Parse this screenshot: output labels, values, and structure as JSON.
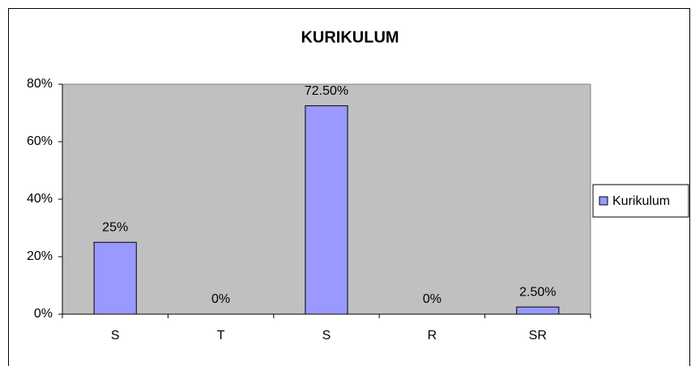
{
  "chart_data": {
    "type": "bar",
    "title": "KURIKULUM",
    "categories": [
      "S",
      "T",
      "S",
      "R",
      "SR"
    ],
    "series": [
      {
        "name": "Kurikulum",
        "color": "#9999ff",
        "values": [
          25,
          0,
          72.5,
          0,
          2.5
        ],
        "value_labels": [
          "25%",
          "0%",
          "72.50%",
          "0%",
          "2.50%"
        ]
      }
    ],
    "ylim": [
      0,
      80
    ],
    "yticks": [
      {
        "value": 0,
        "label": "0%"
      },
      {
        "value": 20,
        "label": "20%"
      },
      {
        "value": 40,
        "label": "40%"
      },
      {
        "value": 60,
        "label": "60%"
      },
      {
        "value": 80,
        "label": "80%"
      }
    ],
    "legend": "right",
    "plot_background": "#c0c0c0"
  }
}
